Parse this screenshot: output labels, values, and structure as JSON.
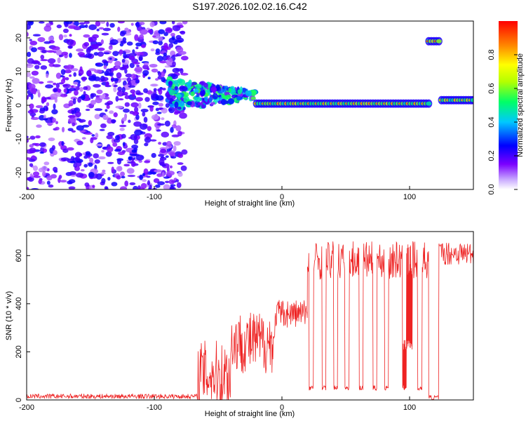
{
  "title": "S197.2026.102.02.16.C42",
  "colors": {
    "trace": "#ee2222",
    "axis": "#000000"
  },
  "chart_data": [
    {
      "type": "heatmap",
      "xlabel": "Height of straight line (km)",
      "ylabel": "Frequency (Hz)",
      "xlim": [
        -200,
        150
      ],
      "ylim": [
        -25,
        25
      ],
      "xticks": [
        -200,
        -100,
        0,
        100
      ],
      "xtick_labels": [
        "-200",
        "-100",
        "0",
        "100"
      ],
      "yticks": [
        -20,
        -10,
        0,
        10,
        20
      ],
      "ytick_labels": [
        "-20",
        "-10",
        "0",
        "10",
        "20"
      ],
      "colorbar": {
        "label": "Normalized spectral amplitude",
        "range": [
          0,
          1
        ],
        "ticks": [
          0.0,
          0.2,
          0.4,
          0.6,
          0.8
        ],
        "tick_labels": [
          "0.0",
          "0.2",
          "0.4",
          "0.6",
          "0.8"
        ],
        "colormap": [
          "#ffffff",
          "#7b00ff",
          "#0000ff",
          "#00c8ff",
          "#00ff66",
          "#b4ff00",
          "#ffff00",
          "#ff8c00",
          "#ff0000"
        ]
      },
      "regions": [
        {
          "name": "noise",
          "x_range": [
            -200,
            -76
          ],
          "amplitude": 0.2
        },
        {
          "name": "turbulent",
          "x_range": [
            -90,
            -20
          ],
          "freq_center": 3,
          "amplitude": 0.45
        },
        {
          "name": "tone",
          "x_range": [
            -20,
            115
          ],
          "freq": 0.5,
          "amplitude": 0.9
        },
        {
          "name": "tone_high",
          "x_range": [
            115,
            123
          ],
          "freq": 19,
          "amplitude": 0.95
        },
        {
          "name": "tone_right",
          "x_range": [
            125,
            150
          ],
          "freq": 1.5,
          "amplitude": 0.85
        }
      ]
    },
    {
      "type": "line",
      "xlabel": "Height of straight line (km)",
      "ylabel": "SNR (10 * v/v)",
      "xlim": [
        -200,
        150
      ],
      "ylim": [
        0,
        700
      ],
      "xticks": [
        -200,
        -100,
        0,
        100
      ],
      "xtick_labels": [
        "-200",
        "-100",
        "0",
        "100"
      ],
      "yticks": [
        0,
        200,
        400,
        600
      ],
      "ytick_labels": [
        "0",
        "200",
        "400",
        "600"
      ],
      "segments": [
        {
          "x": [
            -200,
            -66
          ],
          "base": 15,
          "noise": 10
        },
        {
          "x": [
            -66,
            -40
          ],
          "base": 110,
          "noise": 140
        },
        {
          "x": [
            -40,
            -5
          ],
          "base": 240,
          "noise": 130
        },
        {
          "x": [
            -5,
            20
          ],
          "base": 360,
          "noise": 60
        },
        {
          "x": [
            20,
            115
          ],
          "base": 580,
          "noise": 80,
          "dips_at": [
            23,
            33,
            42,
            51,
            62,
            73,
            82,
            96,
            108
          ],
          "dip_level": 50
        },
        {
          "x": [
            95,
            102
          ],
          "base": 230,
          "noise": 20
        },
        {
          "x": [
            115,
            123
          ],
          "base": 10,
          "noise": 10
        },
        {
          "x": [
            123,
            150
          ],
          "base": 610,
          "noise": 50
        }
      ]
    }
  ]
}
